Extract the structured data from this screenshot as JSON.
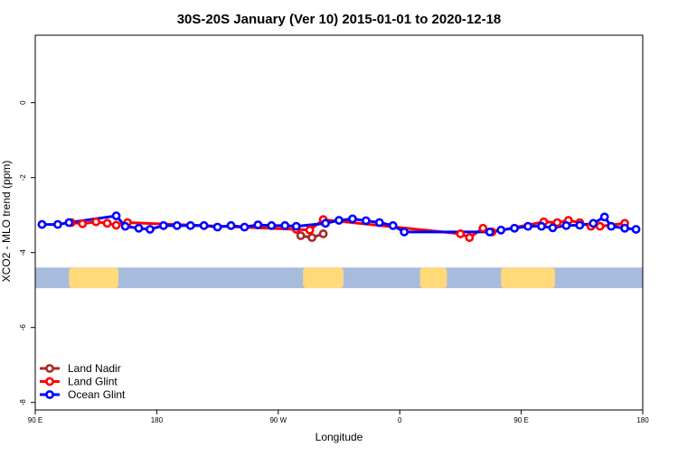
{
  "chart_data": {
    "type": "line",
    "title": "30S-20S January (Ver 10)   2015-01-01 to 2020-12-18",
    "xlabel": "Longitude",
    "ylabel": "XCO2 - MLO trend (ppm)",
    "xlim": [
      -90,
      180
    ],
    "ylim": [
      -8.2,
      1.8
    ],
    "x_ticks": [
      {
        "value": -90,
        "label": "90 E"
      },
      {
        "value": -36,
        "label": "180"
      },
      {
        "value": 18,
        "label": "90 W"
      },
      {
        "value": 72,
        "label": "0"
      },
      {
        "value": 126,
        "label": "90 E"
      },
      {
        "value": 180,
        "label": "180"
      }
    ],
    "y_ticks": [
      {
        "value": 0,
        "label": "0"
      },
      {
        "value": -2,
        "label": "-2"
      },
      {
        "value": -4,
        "label": "-4"
      },
      {
        "value": -6,
        "label": "-6"
      },
      {
        "value": -8,
        "label": "-8"
      }
    ],
    "grid": false,
    "legend_position": "bottom-left",
    "series": [
      {
        "name": "Land Nadir",
        "color": "#a52a2a",
        "points": [
          [
            28,
            -3.55
          ],
          [
            33,
            -3.6
          ],
          [
            38,
            -3.5
          ]
        ]
      },
      {
        "name": "Land Glint",
        "color": "#ff0000",
        "points": [
          [
            -74,
            -3.2
          ],
          [
            -69,
            -3.23
          ],
          [
            -63,
            -3.18
          ],
          [
            -58,
            -3.22
          ],
          [
            -54,
            -3.27
          ],
          [
            -49,
            -3.2
          ],
          [
            26,
            -3.38
          ],
          [
            32,
            -3.4
          ],
          [
            38,
            -3.12
          ],
          [
            99,
            -3.5
          ],
          [
            103,
            -3.6
          ],
          [
            109,
            -3.35
          ],
          [
            113,
            -3.45
          ],
          [
            136,
            -3.18
          ],
          [
            142,
            -3.2
          ],
          [
            147,
            -3.14
          ],
          [
            152,
            -3.2
          ],
          [
            157,
            -3.3
          ],
          [
            161,
            -3.3
          ],
          [
            172,
            -3.22
          ]
        ]
      },
      {
        "name": "Ocean Glint",
        "color": "#0000ff",
        "points": [
          [
            -87,
            -3.25
          ],
          [
            -80,
            -3.25
          ],
          [
            -75,
            -3.2
          ],
          [
            -54,
            -3.02
          ],
          [
            -50,
            -3.3
          ],
          [
            -44,
            -3.35
          ],
          [
            -39,
            -3.38
          ],
          [
            -33,
            -3.28
          ],
          [
            -27,
            -3.28
          ],
          [
            -21,
            -3.28
          ],
          [
            -15,
            -3.28
          ],
          [
            -9,
            -3.32
          ],
          [
            -3,
            -3.28
          ],
          [
            3,
            -3.32
          ],
          [
            9,
            -3.26
          ],
          [
            15,
            -3.28
          ],
          [
            21,
            -3.28
          ],
          [
            26,
            -3.3
          ],
          [
            39,
            -3.22
          ],
          [
            45,
            -3.14
          ],
          [
            51,
            -3.1
          ],
          [
            57,
            -3.15
          ],
          [
            63,
            -3.2
          ],
          [
            69,
            -3.28
          ],
          [
            74,
            -3.45
          ],
          [
            112,
            -3.45
          ],
          [
            117,
            -3.4
          ],
          [
            123,
            -3.35
          ],
          [
            129,
            -3.3
          ],
          [
            135,
            -3.3
          ],
          [
            140,
            -3.34
          ],
          [
            146,
            -3.28
          ],
          [
            152,
            -3.27
          ],
          [
            158,
            -3.22
          ],
          [
            163,
            -3.05
          ],
          [
            166,
            -3.3
          ],
          [
            172,
            -3.35
          ],
          [
            177,
            -3.38
          ]
        ]
      }
    ],
    "map_strip": {
      "y_range": [
        -4.4,
        -4.95
      ],
      "ocean_color": "#a7bcdc",
      "land_color": "#ffd97a",
      "land_spans": [
        [
          -75,
          -53
        ],
        [
          29,
          47
        ],
        [
          81,
          93
        ],
        [
          117,
          141
        ]
      ]
    }
  }
}
